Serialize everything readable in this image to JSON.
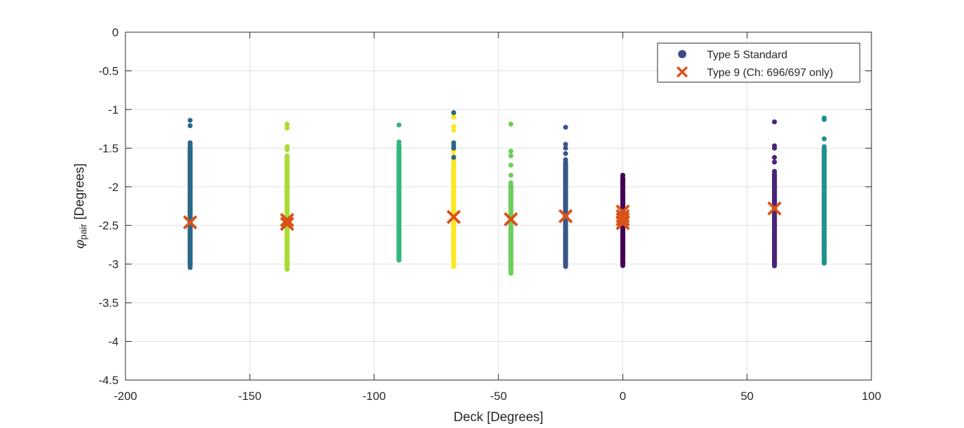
{
  "chart_data": {
    "type": "scatter",
    "title": "",
    "xlabel": "Deck [Degrees]",
    "ylabel": {
      "symbol": "φ",
      "subscript": "pair",
      "unit": "[Degrees]"
    },
    "xlim": [
      -200,
      100
    ],
    "ylim": [
      -4.5,
      0
    ],
    "xticks": [
      -200,
      -150,
      -100,
      -50,
      0,
      50,
      100
    ],
    "xtick_labels": [
      "-200",
      "-150",
      "-100",
      "-50",
      "0",
      "50",
      "100"
    ],
    "yticks": [
      0,
      -0.5,
      -1,
      -1.5,
      -2,
      -2.5,
      -3,
      -3.5,
      -4,
      -4.5
    ],
    "ytick_labels": [
      "0",
      "-0.5",
      "-1",
      "-1.5",
      "-2",
      "-2.5",
      "-3",
      "-3.5",
      "-4",
      "-4.5"
    ],
    "grid": true,
    "legend_position": "top-right",
    "legend": [
      {
        "label": "Type 5 Standard",
        "marker": "circle",
        "color": "#404b8c"
      },
      {
        "label": "Type 9 (Ch: 696/697 only)",
        "marker": "x",
        "color": "#d95319"
      }
    ],
    "series": [
      {
        "group": "Type 5 Standard",
        "x": -174,
        "color": "#2a6889",
        "range": [
          -3.05,
          -1.45
        ],
        "outliers": [
          -1.14,
          -1.21,
          -1.43,
          -1.52,
          -1.55,
          -1.59
        ]
      },
      {
        "group": "Type 5 Standard",
        "x": -135,
        "color": "#aadb32",
        "range": [
          -3.1,
          -1.62
        ],
        "outliers": [
          -1.19,
          -1.24,
          -1.48,
          -1.52,
          -1.6
        ]
      },
      {
        "group": "Type 5 Standard",
        "x": -90,
        "color": "#35b779",
        "range": [
          -2.98,
          -1.46
        ],
        "outliers": [
          -1.2,
          -1.42
        ]
      },
      {
        "group": "Type 5 Standard",
        "x": -68,
        "color": "#fde725",
        "range": [
          -3.06,
          -1.65
        ],
        "outliers": [
          -1.06,
          -1.1,
          -1.22,
          -1.27,
          -1.45,
          -1.54,
          -1.6
        ]
      },
      {
        "group": "Type 5 Standard",
        "x": -68,
        "color": "#2a6889",
        "range": [
          -1.05,
          -1.05
        ],
        "outliers": [
          -1.04,
          -1.43,
          -1.47,
          -1.5,
          -1.62
        ]
      },
      {
        "group": "Type 5 Standard",
        "x": -45,
        "color": "#6ccd5a",
        "range": [
          -3.13,
          -1.95
        ],
        "outliers": [
          -1.19,
          -1.54,
          -1.6,
          -1.72,
          -1.85
        ]
      },
      {
        "group": "Type 5 Standard",
        "x": -23,
        "color": "#3a548c",
        "range": [
          -3.05,
          -1.65
        ],
        "outliers": [
          -1.23,
          -1.45,
          -1.5,
          -1.57
        ]
      },
      {
        "group": "Type 5 Standard",
        "x": 0,
        "color": "#440154",
        "range": [
          -3.03,
          -1.85
        ],
        "outliers": []
      },
      {
        "group": "Type 5 Standard",
        "x": 61,
        "color": "#482576",
        "range": [
          -3.03,
          -1.8
        ],
        "outliers": [
          -1.16,
          -1.47,
          -1.5,
          -1.62,
          -1.68
        ]
      },
      {
        "group": "Type 5 Standard",
        "x": 81,
        "color": "#21918c",
        "range": [
          -3.02,
          -1.48
        ],
        "outliers": [
          -1.11,
          -1.13,
          -1.38
        ]
      }
    ],
    "type9_points": [
      {
        "x": -174,
        "y": -2.46
      },
      {
        "x": -135,
        "y": -2.43
      },
      {
        "x": -135,
        "y": -2.48
      },
      {
        "x": -68,
        "y": -2.39
      },
      {
        "x": -45,
        "y": -2.42
      },
      {
        "x": -23,
        "y": -2.38
      },
      {
        "x": 0,
        "y": -2.32
      },
      {
        "x": 0,
        "y": -2.38
      },
      {
        "x": 0,
        "y": -2.42
      },
      {
        "x": 0,
        "y": -2.47
      },
      {
        "x": 61,
        "y": -2.28
      }
    ],
    "type9_color": "#d95319"
  }
}
